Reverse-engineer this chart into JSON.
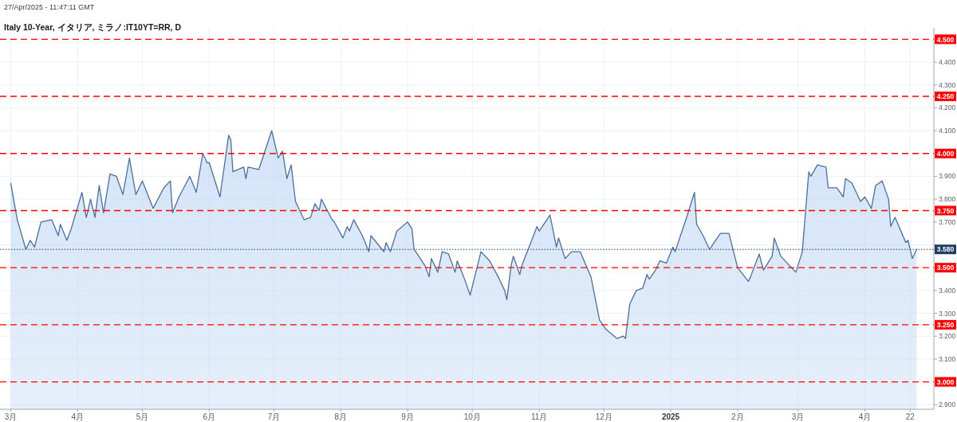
{
  "chart_data": {
    "type": "area",
    "title": "Italy 10-Year, イタリア, ミラノ:IT10YT=RR, D",
    "annotations": [
      "27/Apr/2025 - 11:47:11 GMT"
    ],
    "x": [
      "2024-03-01",
      "2024-03-04",
      "2024-03-08",
      "2024-03-10",
      "2024-03-12",
      "2024-03-15",
      "2024-03-20",
      "2024-03-23",
      "2024-03-24",
      "2024-03-27",
      "2024-03-29",
      "2024-04-03",
      "2024-04-05",
      "2024-04-07",
      "2024-04-09",
      "2024-04-11",
      "2024-04-13",
      "2024-04-16",
      "2024-04-19",
      "2024-04-22",
      "2024-04-25",
      "2024-04-28",
      "2024-05-01",
      "2024-05-06",
      "2024-05-11",
      "2024-05-14",
      "2024-05-15",
      "2024-05-18",
      "2024-05-23",
      "2024-05-26",
      "2024-05-29",
      "2024-05-31",
      "2024-06-01",
      "2024-06-06",
      "2024-06-10",
      "2024-06-11",
      "2024-06-12",
      "2024-06-17",
      "2024-06-18",
      "2024-06-19",
      "2024-06-24",
      "2024-06-30",
      "2024-07-03",
      "2024-07-05",
      "2024-07-07",
      "2024-07-09",
      "2024-07-11",
      "2024-07-15",
      "2024-07-18",
      "2024-07-20",
      "2024-07-22",
      "2024-07-23",
      "2024-07-28",
      "2024-07-29",
      "2024-08-02",
      "2024-08-04",
      "2024-08-05",
      "2024-08-07",
      "2024-08-11",
      "2024-08-14",
      "2024-08-15",
      "2024-08-21",
      "2024-08-22",
      "2024-08-24",
      "2024-08-27",
      "2024-09-01",
      "2024-09-03",
      "2024-09-04",
      "2024-09-09",
      "2024-09-11",
      "2024-09-12",
      "2024-09-15",
      "2024-09-17",
      "2024-09-20",
      "2024-09-23",
      "2024-09-24",
      "2024-09-27",
      "2024-09-30",
      "2024-10-05",
      "2024-10-09",
      "2024-10-13",
      "2024-10-16",
      "2024-10-17",
      "2024-10-19",
      "2024-10-20",
      "2024-10-23",
      "2024-10-24",
      "2024-10-31",
      "2024-11-01",
      "2024-11-06",
      "2024-11-09",
      "2024-11-10",
      "2024-11-13",
      "2024-11-16",
      "2024-11-20",
      "2024-11-25",
      "2024-11-29",
      "2024-12-02",
      "2024-12-07",
      "2024-12-10",
      "2024-12-11",
      "2024-12-13",
      "2024-12-16",
      "2024-12-19",
      "2024-12-21",
      "2024-12-22",
      "2024-12-25",
      "2024-12-27",
      "2024-12-30",
      "2025-01-02",
      "2025-01-03",
      "2025-01-08",
      "2025-01-12",
      "2025-01-13",
      "2025-01-16",
      "2025-01-19",
      "2025-01-24",
      "2025-01-28",
      "2025-02-01",
      "2025-02-06",
      "2025-02-07",
      "2025-02-11",
      "2025-02-13",
      "2025-02-17",
      "2025-02-18",
      "2025-02-21",
      "2025-02-28",
      "2025-03-03",
      "2025-03-06",
      "2025-03-07",
      "2025-03-10",
      "2025-03-14",
      "2025-03-15",
      "2025-03-19",
      "2025-03-22",
      "2025-03-23",
      "2025-03-26",
      "2025-03-30",
      "2025-04-01",
      "2025-04-04",
      "2025-04-06",
      "2025-04-09",
      "2025-04-12",
      "2025-04-13",
      "2025-04-15",
      "2025-04-20",
      "2025-04-21",
      "2025-04-23",
      "2025-04-25"
    ],
    "series": [
      {
        "color": "#4c6f99",
        "axis": "y2",
        "values": [
          3.87,
          3.71,
          3.58,
          3.62,
          3.59,
          3.7,
          3.71,
          3.64,
          3.69,
          3.62,
          3.67,
          3.83,
          3.72,
          3.8,
          3.72,
          3.86,
          3.74,
          3.91,
          3.9,
          3.82,
          3.98,
          3.82,
          3.88,
          3.76,
          3.85,
          3.88,
          3.74,
          3.81,
          3.9,
          3.83,
          4.0,
          3.96,
          3.96,
          3.81,
          4.08,
          4.06,
          3.92,
          3.94,
          3.89,
          3.94,
          3.93,
          4.1,
          3.98,
          4.01,
          3.89,
          3.95,
          3.79,
          3.71,
          3.72,
          3.78,
          3.75,
          3.8,
          3.71,
          3.7,
          3.63,
          3.68,
          3.66,
          3.71,
          3.64,
          3.57,
          3.64,
          3.57,
          3.61,
          3.57,
          3.66,
          3.7,
          3.67,
          3.58,
          3.51,
          3.46,
          3.54,
          3.48,
          3.57,
          3.56,
          3.48,
          3.53,
          3.46,
          3.38,
          3.57,
          3.53,
          3.46,
          3.4,
          3.36,
          3.51,
          3.55,
          3.47,
          3.51,
          3.68,
          3.66,
          3.73,
          3.59,
          3.63,
          3.54,
          3.57,
          3.57,
          3.46,
          3.27,
          3.23,
          3.19,
          3.2,
          3.19,
          3.34,
          3.4,
          3.41,
          3.47,
          3.45,
          3.49,
          3.53,
          3.52,
          3.59,
          3.57,
          3.71,
          3.83,
          3.69,
          3.64,
          3.58,
          3.65,
          3.65,
          3.5,
          3.44,
          3.46,
          3.56,
          3.49,
          3.55,
          3.63,
          3.55,
          3.48,
          3.57,
          3.92,
          3.9,
          3.95,
          3.94,
          3.85,
          3.85,
          3.81,
          3.89,
          3.87,
          3.79,
          3.81,
          3.76,
          3.86,
          3.88,
          3.8,
          3.68,
          3.72,
          3.61,
          3.62,
          3.54,
          3.58
        ]
      }
    ],
    "xlim": [
      "2024-02-25",
      "2025-05-03"
    ],
    "xticks": [
      {
        "value": "2024-03-01",
        "label": "3月"
      },
      {
        "value": "2024-04-01",
        "label": "4月"
      },
      {
        "value": "2024-05-01",
        "label": "5月"
      },
      {
        "value": "2024-06-01",
        "label": "6月"
      },
      {
        "value": "2024-07-01",
        "label": "7月"
      },
      {
        "value": "2024-08-01",
        "label": "8月"
      },
      {
        "value": "2024-09-01",
        "label": "9月"
      },
      {
        "value": "2024-10-01",
        "label": "10月"
      },
      {
        "value": "2024-11-01",
        "label": "11月"
      },
      {
        "value": "2024-12-01",
        "label": "12月"
      },
      {
        "value": "2025-01-01",
        "label": "2025"
      },
      {
        "value": "2025-02-01",
        "label": "2月"
      },
      {
        "value": "2025-03-01",
        "label": "3月"
      },
      {
        "value": "2025-04-01",
        "label": "4月"
      },
      {
        "value": "2025-04-22",
        "label": "22"
      }
    ],
    "y2lim": [
      2.88,
      4.55
    ],
    "y2ticks": [
      {
        "value": 2.9,
        "label": "2.900"
      },
      {
        "value": 3.1,
        "label": "3.100"
      },
      {
        "value": 3.2,
        "label": "3.200"
      },
      {
        "value": 3.3,
        "label": "3.300"
      },
      {
        "value": 3.4,
        "label": "3.400"
      },
      {
        "value": 3.6,
        "label": null
      },
      {
        "value": 3.7,
        "label": "3.700"
      },
      {
        "value": 3.8,
        "label": "3.800"
      },
      {
        "value": 3.9,
        "label": "3.900"
      },
      {
        "value": 4.1,
        "label": "4.100"
      },
      {
        "value": 4.2,
        "label": "4.200"
      },
      {
        "value": 4.3,
        "label": "4.300"
      },
      {
        "value": 4.4,
        "label": "4.400"
      }
    ],
    "ref_lines": [
      {
        "axis": "y2",
        "value": 4.5,
        "label": "4.500",
        "color": "#ff0000",
        "line_style": "dashed"
      },
      {
        "axis": "y2",
        "value": 4.25,
        "label": "4.250",
        "color": "#ff0000",
        "line_style": "dashed"
      },
      {
        "axis": "y2",
        "value": 4.0,
        "label": "4.000",
        "color": "#ff0000",
        "line_style": "dashed"
      },
      {
        "axis": "y2",
        "value": 3.75,
        "label": "3.750",
        "color": "#ff0000",
        "line_style": "dashed"
      },
      {
        "axis": "y2",
        "value": 3.58,
        "label": "3.580",
        "color": "#1f3d63",
        "line_style": "dotted"
      },
      {
        "axis": "y2",
        "value": 3.5,
        "label": "3.500",
        "color": "#ff0000",
        "line_style": "dashed"
      },
      {
        "axis": "y2",
        "value": 3.25,
        "label": "3.250",
        "color": "#ff0000",
        "line_style": "dashed"
      },
      {
        "axis": "y2",
        "value": 3.0,
        "label": "3.000",
        "color": "#ff0000",
        "line_style": "dashed"
      }
    ],
    "grid": true
  }
}
